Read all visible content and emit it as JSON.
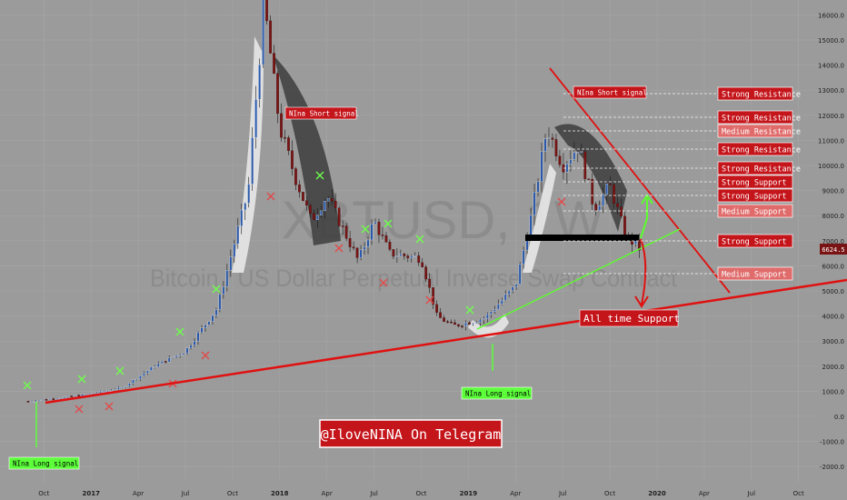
{
  "watermark": {
    "symbol": "XBTUSD, 1W",
    "description": "Bitcoin / US Dollar Perpetual Inverse Swap Contract"
  },
  "current_price_label": "6624.5",
  "telegram_label": "@IloveNINA On Telegram",
  "colors": {
    "background": "#9b9b9b",
    "up_candle": "#2a58a8",
    "down_candle": "#7a1414",
    "resistance_line": "#e01010",
    "support_line": "#e01010",
    "trend_line": "#5aff2a",
    "label_dark_red": "#c4151b",
    "label_light_red": "#e06b6b",
    "long_signal": "#5cff3a",
    "short_signal": "#c4151b"
  },
  "chart_data": {
    "type": "candlestick",
    "symbol": "XBTUSD",
    "interval": "1W",
    "x_tick_labels": [
      "Oct",
      "2017",
      "Apr",
      "Jul",
      "Oct",
      "2018",
      "Apr",
      "Jul",
      "Oct",
      "2019",
      "Apr",
      "Jul",
      "Oct",
      "2020",
      "Apr",
      "Jul",
      "Oct"
    ],
    "y_tick_labels": [
      "16000.0",
      "15000.0",
      "14000.0",
      "13000.0",
      "12000.0",
      "11000.0",
      "10000.0",
      "9000.0",
      "8000.0",
      "7000.0",
      "6000.0",
      "5000.0",
      "4000.0",
      "3000.0",
      "2000.0",
      "1000.0",
      "0.0",
      "-1000.0",
      "-2000.0"
    ],
    "ylim": [
      -2000,
      16000
    ],
    "last_price": 6624.5,
    "price_path_weekly_close": [
      [
        "2016-09",
        600
      ],
      [
        "2016-11",
        740
      ],
      [
        "2017-01",
        900
      ],
      [
        "2017-03",
        1150
      ],
      [
        "2017-05",
        2000
      ],
      [
        "2017-07",
        2600
      ],
      [
        "2017-09",
        4300
      ],
      [
        "2017-11",
        9000
      ],
      [
        "2017-12",
        16500
      ],
      [
        "2018-01",
        11500
      ],
      [
        "2018-02",
        9500
      ],
      [
        "2018-03",
        7800
      ],
      [
        "2018-04",
        8800
      ],
      [
        "2018-05",
        7500
      ],
      [
        "2018-06",
        6200
      ],
      [
        "2018-07",
        7800
      ],
      [
        "2018-08",
        6500
      ],
      [
        "2018-09",
        6400
      ],
      [
        "2018-10",
        6300
      ],
      [
        "2018-11",
        4000
      ],
      [
        "2018-12",
        3600
      ],
      [
        "2019-02",
        3900
      ],
      [
        "2019-04",
        5200
      ],
      [
        "2019-05",
        8000
      ],
      [
        "2019-06",
        11500
      ],
      [
        "2019-07",
        10000
      ],
      [
        "2019-08",
        10800
      ],
      [
        "2019-09",
        8300
      ],
      [
        "2019-10",
        9200
      ],
      [
        "2019-11",
        7200
      ],
      [
        "2019-12",
        6624.5
      ]
    ],
    "horizontal_levels": [
      {
        "label": "Strong Resistance",
        "price": 13000
      },
      {
        "label": "Strong Resistance",
        "price": 12050
      },
      {
        "label": "Medium Resistance",
        "price": 11500
      },
      {
        "label": "Strong Resistance",
        "price": 10950
      },
      {
        "label": "Strong Resistance",
        "price": 10200
      },
      {
        "label": "Strong Support",
        "price": 9650
      },
      {
        "label": "Strong Support",
        "price": 9150
      },
      {
        "label": "Medium  Support",
        "price": 8500
      },
      {
        "label": "Strong Support",
        "price": 7200
      },
      {
        "label": "Medium  Support",
        "price": 5700
      }
    ],
    "annotations": [
      {
        "label": "NIna Short signal",
        "date": "2018-01"
      },
      {
        "label": "NIna Short signal",
        "date": "2019-06"
      },
      {
        "label": "NIna Long signal",
        "date": "2016-10"
      },
      {
        "label": "NIna Long signal",
        "date": "2019-03"
      },
      {
        "label": "All time Support",
        "date": "2019-12"
      }
    ]
  }
}
